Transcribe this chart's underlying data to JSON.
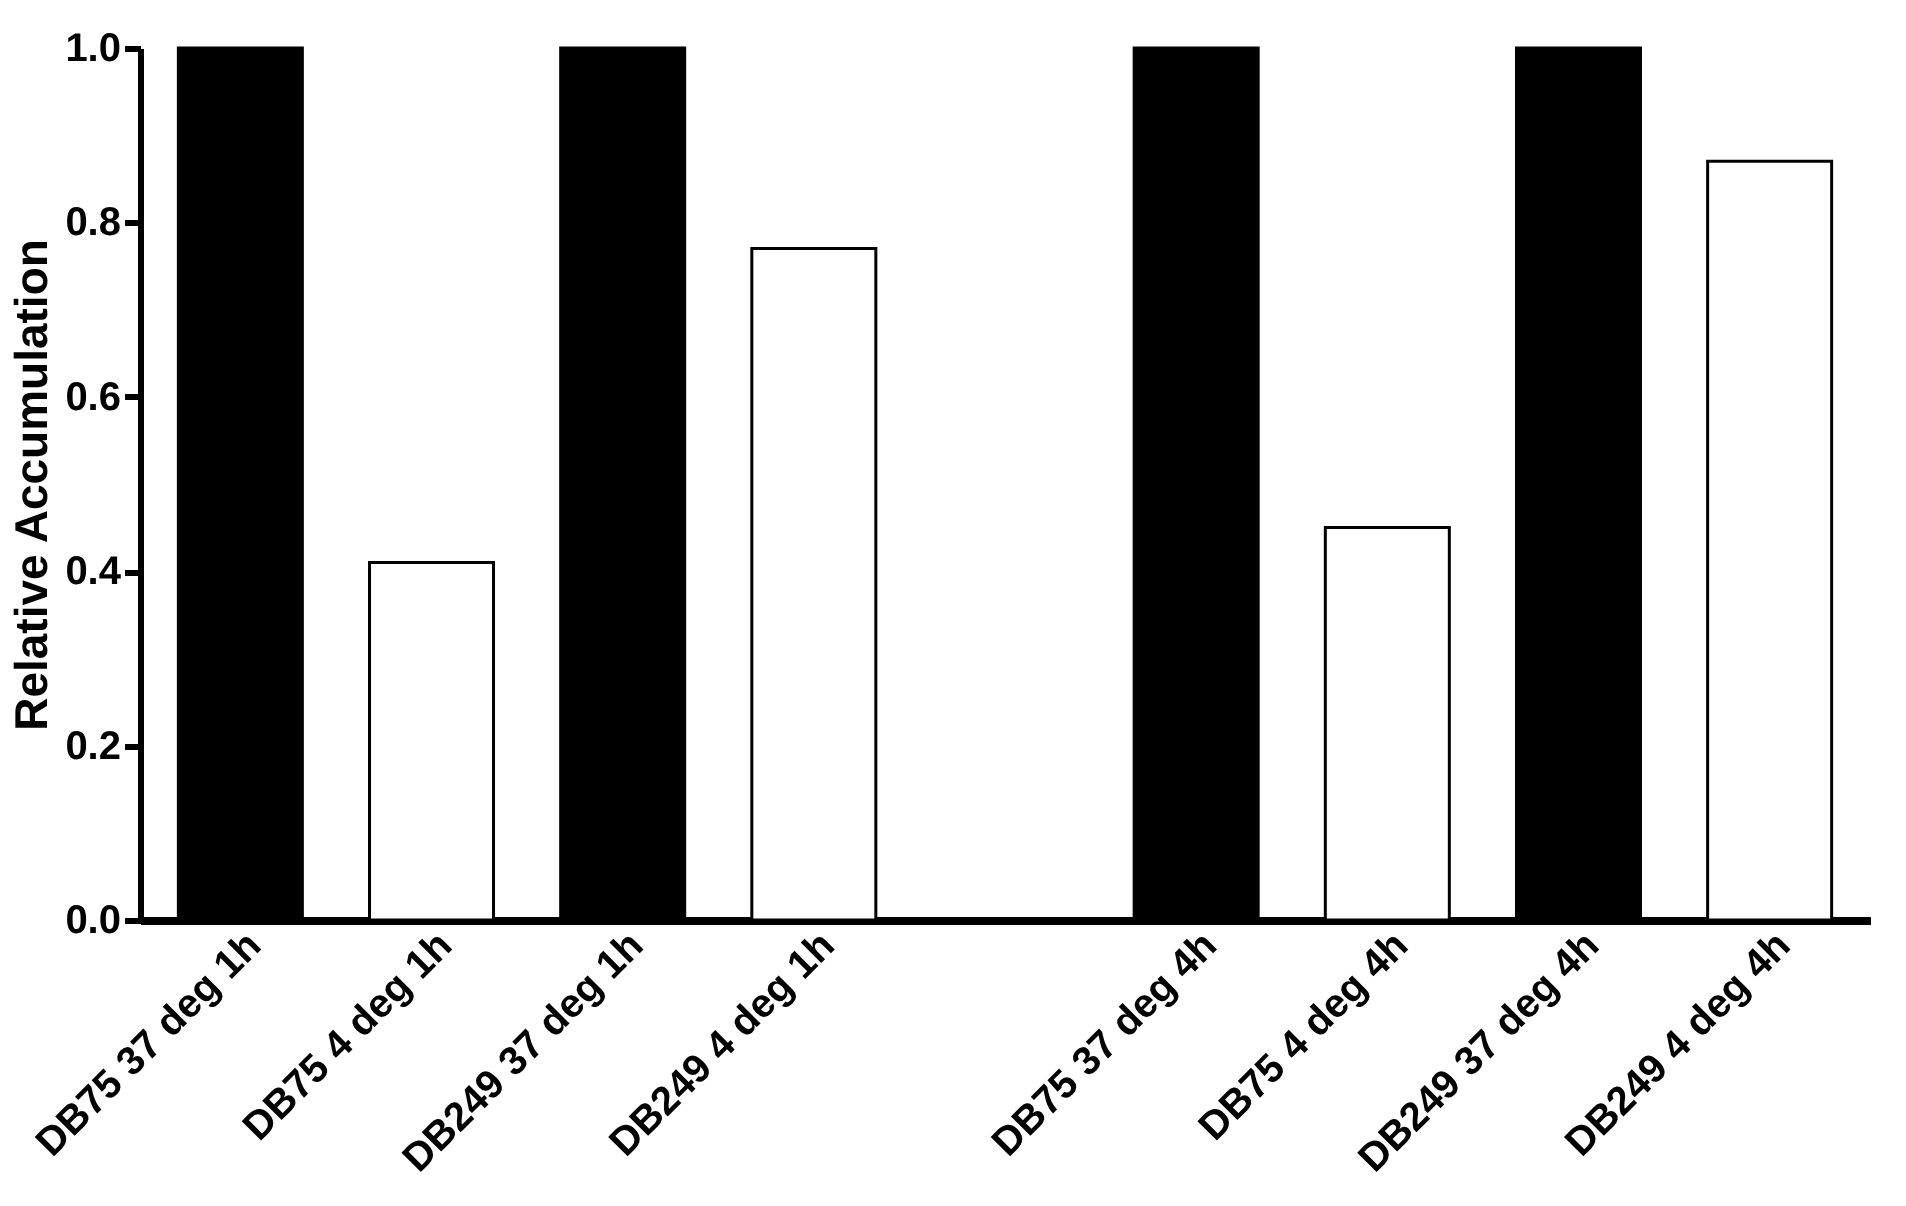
{
  "chart_data": {
    "type": "bar",
    "ylabel": "Relative Accumulation",
    "categories": [
      "DB75 37 deg 1h",
      "DB75 4 deg 1h",
      "DB249 37 deg 1h",
      "DB249 4 deg 1h",
      null,
      "DB75 37 deg 4h",
      "DB75 4 deg 4h",
      "DB249 37 deg 4h",
      "DB249 4 deg 4h"
    ],
    "values": [
      1.0,
      0.41,
      1.0,
      0.77,
      null,
      1.0,
      0.45,
      1.0,
      0.87
    ],
    "colors": [
      "#000000",
      "#ffffff",
      "#000000",
      "#ffffff",
      "#ffffff",
      "#000000",
      "#ffffff",
      "#000000",
      "#ffffff"
    ],
    "ylim": [
      0,
      1.0
    ],
    "yticks": [
      {
        "value": 0,
        "label": "0.0"
      },
      {
        "value": 0.2,
        "label": "0.2"
      },
      {
        "value": 0.4,
        "label": "0.4"
      },
      {
        "value": 0.6,
        "label": "0.6"
      },
      {
        "value": 0.8,
        "label": "0.8"
      },
      {
        "value": 1.0,
        "label": "1.0"
      }
    ],
    "grid": false
  }
}
